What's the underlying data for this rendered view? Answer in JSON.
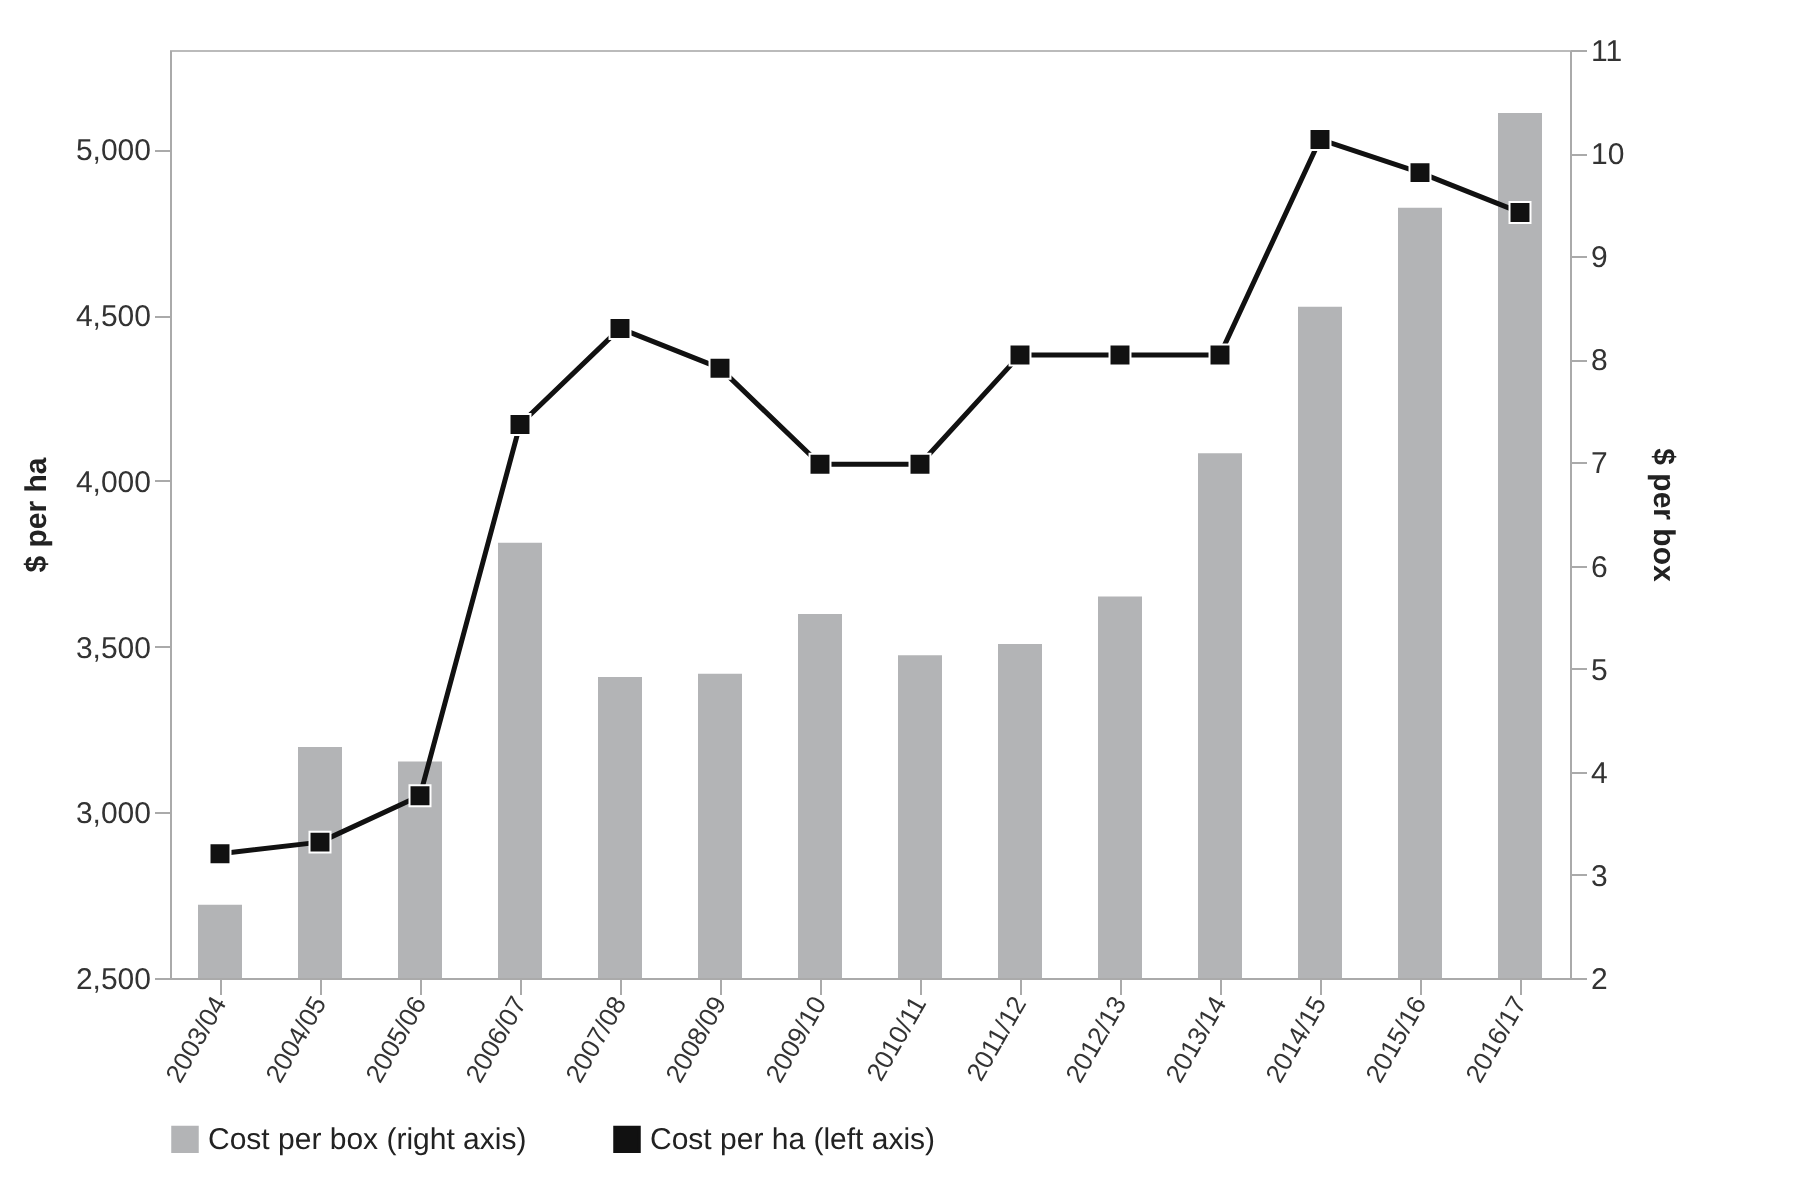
{
  "chart_data": {
    "type": "bar",
    "ylabel": "$ per ha",
    "y2label": "$ per box",
    "categories": [
      "2003/04",
      "2004/05",
      "2005/06",
      "2006/07",
      "2007/08",
      "2008/09",
      "2009/10",
      "2010/11",
      "2011/12",
      "2012/13",
      "2013/14",
      "2014/15",
      "2015/16",
      "2016/17"
    ],
    "series": [
      {
        "name": "Cost per box (right axis)",
        "axis": "y2",
        "color": "#b3b4b6",
        "values": [
          2.71,
          4.24,
          4.1,
          6.22,
          4.92,
          4.95,
          5.53,
          5.13,
          5.24,
          5.7,
          7.09,
          8.51,
          9.47,
          10.39
        ]
      },
      {
        "name": "Cost per ha (left axis)",
        "type": "line",
        "color": "#111111",
        "values": [
          2875,
          2910,
          3050,
          4170,
          4460,
          4340,
          4050,
          4050,
          4380,
          4380,
          4380,
          5030,
          4930,
          4810
        ]
      }
    ],
    "ylim": [
      2500,
      5300
    ],
    "yticks": [
      {
        "value": 2500,
        "label": "2,500"
      },
      {
        "value": 3000,
        "label": "3,000"
      },
      {
        "value": 3500,
        "label": "3,500"
      },
      {
        "value": 4000,
        "label": "4,000"
      },
      {
        "value": 4500,
        "label": "4,500"
      },
      {
        "value": 5000,
        "label": "5,000"
      }
    ],
    "y2lim": [
      2,
      11
    ],
    "y2ticks": [
      2,
      3,
      4,
      5,
      6,
      7,
      8,
      9,
      10,
      11
    ],
    "grid": false,
    "legend": "bottom",
    "marker": "square",
    "line_style": "solid"
  }
}
